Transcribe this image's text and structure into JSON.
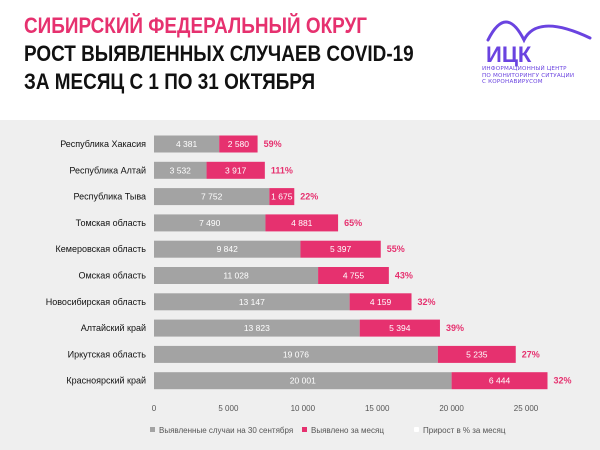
{
  "header": {
    "title_lines": [
      "СИБИРСКИЙ ФЕДЕРАЛЬНЫЙ ОКРУГ",
      "РОСТ ВЫЯВЛЕННЫХ СЛУЧАЕВ COVID-19",
      "ЗА МЕСЯЦ С 1 ПО 31 ОКТЯБРЯ"
    ]
  },
  "logo": {
    "name": "ИЦК",
    "tagline_lines": [
      "ИНФОРМАЦИОННЫЙ ЦЕНТР",
      "ПО МОНИТОРИНГУ СИТУАЦИИ",
      "С КОРОНАВИРУСОМ"
    ],
    "color": "#6a43e0"
  },
  "colors": {
    "base": "#a3a3a3",
    "increase": "#e6316f",
    "percent": "#e6316f",
    "panel": "#efefef"
  },
  "chart_data": {
    "type": "bar",
    "orientation": "horizontal",
    "stacked": true,
    "categories": [
      "Республика Хакасия",
      "Республика Алтай",
      "Республика Тыва",
      "Томская область",
      "Кемеровская область",
      "Омская область",
      "Новосибирская область",
      "Алтайский край",
      "Иркутская область",
      "Красноярский край"
    ],
    "series": [
      {
        "name": "Выявленные случаи на 30 сентября",
        "values": [
          4381,
          3532,
          7752,
          7490,
          9842,
          11028,
          13147,
          13823,
          19076,
          20001
        ],
        "labels": [
          "4 381",
          "3 532",
          "7 752",
          "7 490",
          "9 842",
          "11 028",
          "13 147",
          "13 823",
          "19 076",
          "20 001"
        ]
      },
      {
        "name": "Выявлено за месяц",
        "values": [
          2580,
          3917,
          1675,
          4881,
          5397,
          4755,
          4159,
          5394,
          5235,
          6444
        ],
        "labels": [
          "2 580",
          "3 917",
          "1 675",
          "4 881",
          "5 397",
          "4 755",
          "4 159",
          "5 394",
          "5 235",
          "6 444"
        ]
      }
    ],
    "growth_series_name": "Прирост в % за месяц",
    "growth_labels": [
      "59%",
      "111%",
      "22%",
      "65%",
      "55%",
      "43%",
      "32%",
      "39%",
      "27%",
      "32%"
    ],
    "xlim": [
      0,
      25000
    ],
    "xticks": [
      0,
      5000,
      10000,
      15000,
      20000,
      25000
    ],
    "xtick_labels": [
      "0",
      "5 000",
      "10 000",
      "15 000",
      "20 000",
      "25 000"
    ],
    "grid": false,
    "legend_position": "bottom"
  }
}
